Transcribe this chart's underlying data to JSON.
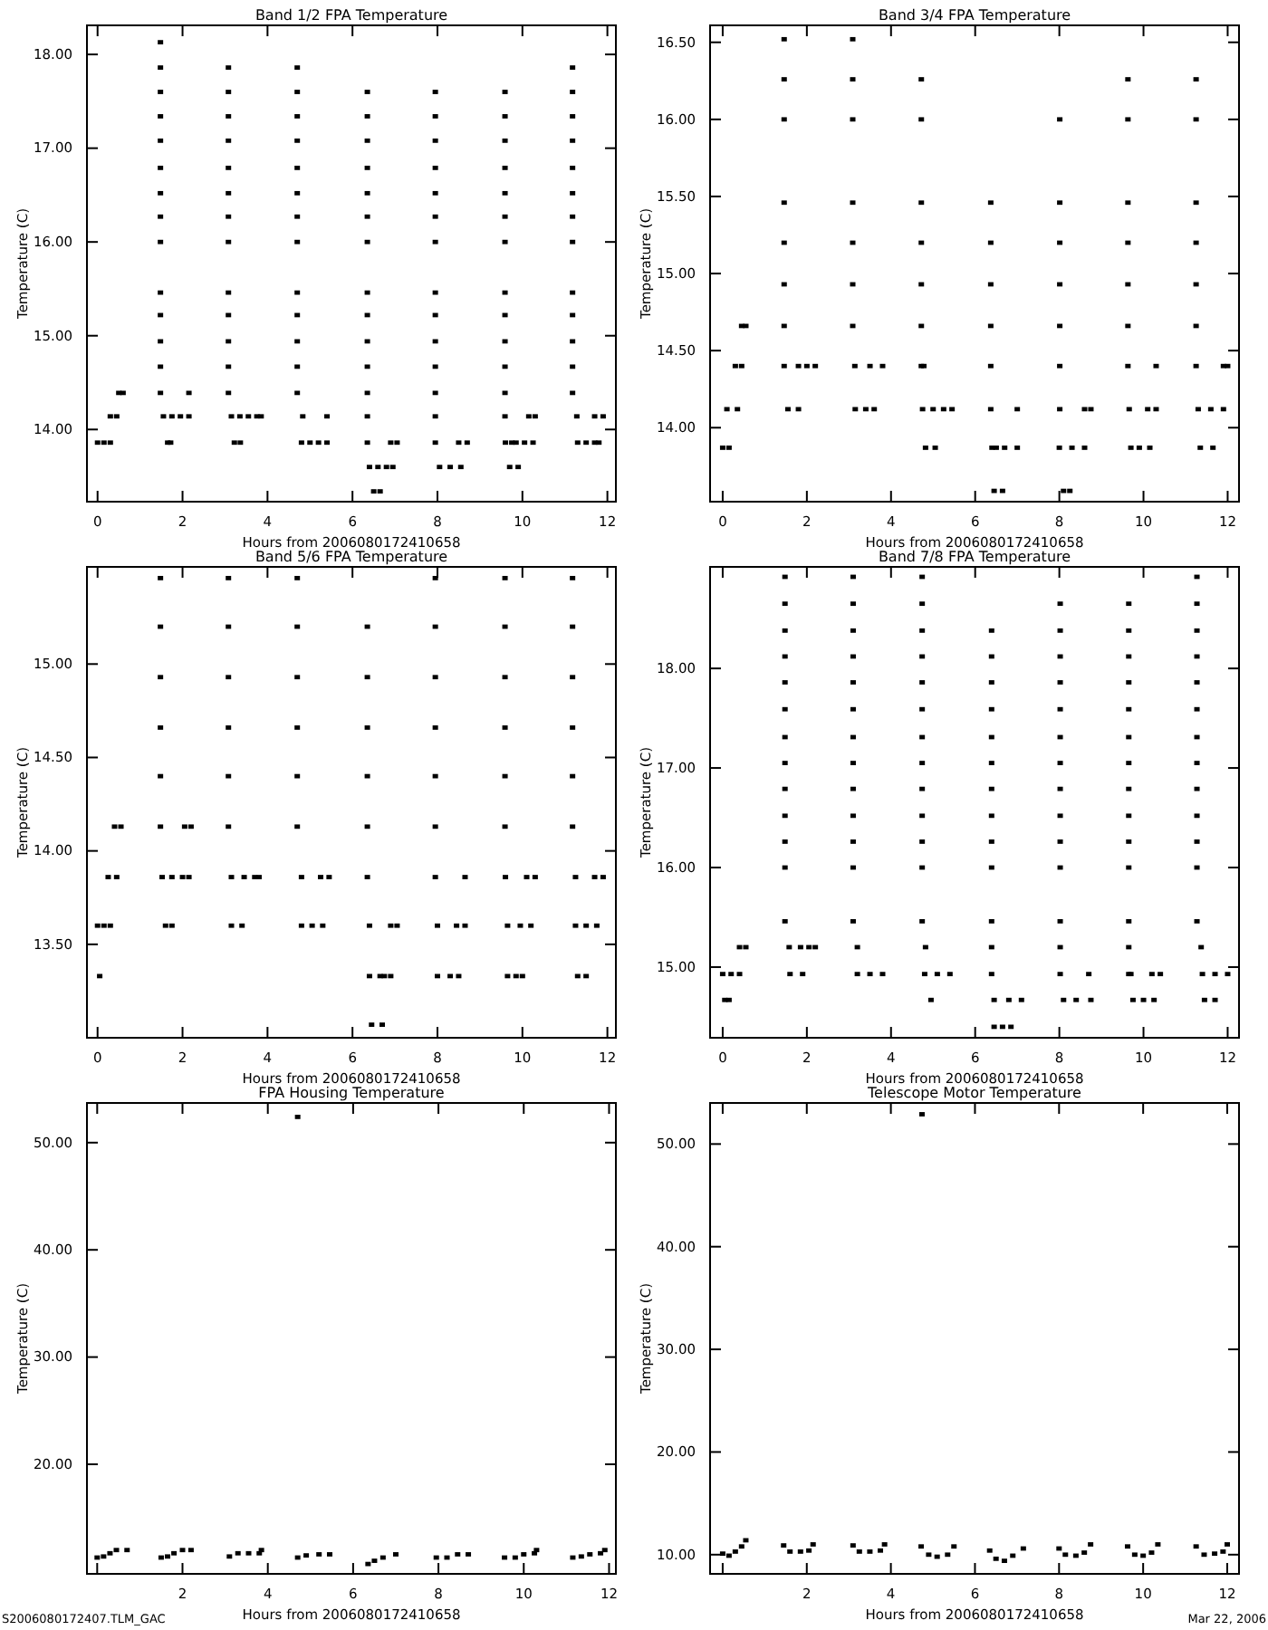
{
  "chart_data": [
    {
      "type": "scatter",
      "title": "Band 1/2 FPA Temperature",
      "xlabel": "Hours from 2006080172410658",
      "ylabel": "Temperature (C)",
      "color": "#000000",
      "marker": "square",
      "xlim": [
        -0.25,
        12.2
      ],
      "xticks": [
        0,
        2,
        4,
        6,
        8,
        10,
        12
      ],
      "ylim": [
        13.23,
        18.31
      ],
      "yticks": [
        {
          "value": 14,
          "label": "14.00"
        },
        {
          "value": 15,
          "label": "15.00"
        },
        {
          "value": 16,
          "label": "16.00"
        },
        {
          "value": 17,
          "label": "17.00"
        },
        {
          "value": 18,
          "label": "18.00"
        }
      ],
      "x": [
        1.48,
        1.48,
        1.48,
        1.48,
        1.48,
        1.48,
        1.48,
        1.48,
        1.48,
        1.48,
        1.48,
        1.48,
        1.48,
        1.48,
        3.08,
        3.08,
        3.08,
        3.08,
        3.08,
        3.08,
        3.08,
        3.08,
        3.08,
        3.08,
        3.08,
        3.08,
        3.08,
        4.7,
        4.7,
        4.7,
        4.7,
        4.7,
        4.7,
        4.7,
        4.7,
        4.7,
        4.7,
        4.7,
        4.7,
        4.7,
        6.35,
        6.35,
        6.35,
        6.35,
        6.35,
        6.35,
        6.35,
        6.35,
        6.35,
        6.35,
        6.35,
        6.35,
        6.35,
        6.35,
        7.95,
        7.95,
        7.95,
        7.95,
        7.95,
        7.95,
        7.95,
        7.95,
        7.95,
        7.95,
        7.95,
        7.95,
        7.95,
        7.95,
        9.59,
        9.59,
        9.59,
        9.59,
        9.59,
        9.59,
        9.59,
        9.59,
        9.59,
        9.59,
        9.59,
        9.59,
        9.59,
        11.18,
        11.18,
        11.18,
        11.18,
        11.18,
        11.18,
        11.18,
        11.18,
        11.18,
        11.18,
        11.18,
        11.18,
        11.18,
        0,
        0.15,
        0.3,
        0.3,
        0.45,
        0.5,
        0.6,
        1.55,
        1.75,
        1.95,
        2.15,
        1.65,
        1.72,
        2.15,
        3.15,
        3.35,
        3.55,
        3.75,
        3.85,
        3.22,
        3.36,
        4.83,
        4.8,
        5.0,
        5.2,
        5.4,
        5.4,
        6.4,
        6.6,
        6.8,
        6.95,
        6.5,
        6.65,
        6.9,
        7.05,
        8.05,
        8.3,
        8.55,
        8.5,
        8.7,
        9.6,
        9.75,
        9.85,
        10.05,
        10.25,
        9.7,
        9.9,
        10.15,
        10.3,
        11.28,
        11.3,
        11.5,
        11.7,
        11.8,
        11.7,
        11.9
      ],
      "values": [
        14.39,
        14.67,
        14.94,
        15.22,
        15.46,
        16.0,
        16.27,
        16.52,
        16.79,
        17.08,
        17.34,
        17.6,
        17.86,
        18.13,
        14.39,
        14.67,
        14.94,
        15.22,
        15.46,
        16.0,
        16.27,
        16.52,
        16.79,
        17.08,
        17.34,
        17.6,
        17.86,
        14.39,
        14.67,
        14.94,
        15.22,
        15.46,
        16.0,
        16.27,
        16.52,
        16.79,
        17.08,
        17.34,
        17.6,
        17.86,
        13.86,
        14.14,
        14.39,
        14.67,
        14.94,
        15.22,
        15.46,
        16.0,
        16.27,
        16.52,
        16.79,
        17.08,
        17.34,
        17.6,
        13.86,
        14.14,
        14.39,
        14.67,
        14.94,
        15.22,
        15.46,
        16.0,
        16.27,
        16.52,
        16.79,
        17.08,
        17.34,
        17.6,
        14.14,
        14.39,
        14.67,
        14.94,
        15.22,
        15.46,
        16.0,
        16.27,
        16.52,
        16.79,
        17.08,
        17.34,
        17.6,
        14.39,
        14.67,
        14.94,
        15.22,
        15.46,
        16.0,
        16.27,
        16.52,
        16.79,
        17.08,
        17.34,
        17.6,
        17.86,
        13.86,
        13.86,
        13.86,
        14.14,
        14.14,
        14.39,
        14.39,
        14.14,
        14.14,
        14.14,
        14.14,
        13.86,
        13.86,
        14.39,
        14.14,
        14.14,
        14.14,
        14.14,
        14.14,
        13.86,
        13.86,
        14.14,
        13.86,
        13.86,
        13.86,
        13.86,
        14.14,
        13.6,
        13.6,
        13.6,
        13.6,
        13.34,
        13.34,
        13.86,
        13.86,
        13.6,
        13.6,
        13.6,
        13.86,
        13.86,
        13.86,
        13.86,
        13.86,
        13.86,
        13.86,
        13.6,
        13.6,
        14.14,
        14.14,
        14.14,
        13.86,
        13.86,
        13.86,
        13.86,
        14.14,
        14.14
      ]
    },
    {
      "type": "scatter",
      "title": "Band 3/4 FPA Temperature",
      "xlabel": "Hours from 2006080172410658",
      "ylabel": "Temperature (C)",
      "color": "#000000",
      "marker": "square",
      "xlim": [
        -0.3,
        12.27
      ],
      "xticks": [
        0,
        2,
        4,
        6,
        8,
        10,
        12
      ],
      "ylim": [
        13.52,
        16.61
      ],
      "yticks": [
        {
          "value": 14,
          "label": "14.00"
        },
        {
          "value": 14.5,
          "label": "14.50"
        },
        {
          "value": 15,
          "label": "15.00"
        },
        {
          "value": 15.5,
          "label": "15.50"
        },
        {
          "value": 16,
          "label": "16.00"
        },
        {
          "value": 16.5,
          "label": "16.50"
        }
      ],
      "x": [
        1.46,
        1.46,
        1.46,
        1.46,
        1.46,
        1.46,
        1.46,
        1.46,
        3.09,
        3.09,
        3.09,
        3.09,
        3.09,
        3.09,
        3.09,
        4.72,
        4.72,
        4.72,
        4.72,
        4.72,
        4.72,
        4.72,
        6.37,
        6.37,
        6.37,
        6.37,
        6.37,
        6.37,
        8.01,
        8.01,
        8.01,
        8.01,
        8.01,
        8.01,
        8.01,
        9.63,
        9.63,
        9.63,
        9.63,
        9.63,
        9.63,
        9.63,
        11.25,
        11.25,
        11.25,
        11.25,
        11.25,
        11.25,
        11.25,
        0,
        0.15,
        4.82,
        5.05,
        6.4,
        6.5,
        6.7,
        7.0,
        8.0,
        8.3,
        8.6,
        9.7,
        9.9,
        10.15,
        11.35,
        11.65,
        0.1,
        0.35,
        1.55,
        1.8,
        3.15,
        3.4,
        3.6,
        4.75,
        5.0,
        5.25,
        5.45,
        7.0,
        8.6,
        8.75,
        9.66,
        10.1,
        10.3,
        11.3,
        11.6,
        11.9,
        0.3,
        0.45,
        1.8,
        2.0,
        2.2,
        3.14,
        3.5,
        3.8,
        4.78,
        10.3,
        11.9,
        12.0,
        0.45,
        0.55,
        6.45,
        6.65,
        8.1,
        8.25
      ],
      "values": [
        14.4,
        14.66,
        14.93,
        15.2,
        15.46,
        16.0,
        16.26,
        16.52,
        14.66,
        14.93,
        15.2,
        15.46,
        16.0,
        16.26,
        16.52,
        14.4,
        14.66,
        14.93,
        15.2,
        15.46,
        16.0,
        16.26,
        14.12,
        14.4,
        14.66,
        14.93,
        15.2,
        15.46,
        14.12,
        14.4,
        14.66,
        14.93,
        15.2,
        15.46,
        16.0,
        14.4,
        14.66,
        14.93,
        15.2,
        15.46,
        16.0,
        16.26,
        14.4,
        14.66,
        14.93,
        15.2,
        15.46,
        16.0,
        16.26,
        13.87,
        13.87,
        13.87,
        13.87,
        13.87,
        13.87,
        13.87,
        13.87,
        13.87,
        13.87,
        13.87,
        13.87,
        13.87,
        13.87,
        13.87,
        13.87,
        14.12,
        14.12,
        14.12,
        14.12,
        14.12,
        14.12,
        14.12,
        14.12,
        14.12,
        14.12,
        14.12,
        14.12,
        14.12,
        14.12,
        14.12,
        14.12,
        14.12,
        14.12,
        14.12,
        14.12,
        14.4,
        14.4,
        14.4,
        14.4,
        14.4,
        14.4,
        14.4,
        14.4,
        14.4,
        14.4,
        14.4,
        14.4,
        14.66,
        14.66,
        13.59,
        13.59,
        13.59,
        13.59
      ]
    },
    {
      "type": "scatter",
      "title": "Band 5/6 FPA Temperature",
      "xlabel": "Hours from 2006080172410658",
      "ylabel": "Temperature (C)",
      "color": "#000000",
      "marker": "square",
      "xlim": [
        -0.25,
        12.2
      ],
      "xticks": [
        0,
        2,
        4,
        6,
        8,
        10,
        12
      ],
      "ylim": [
        13.0,
        15.52
      ],
      "yticks": [
        {
          "value": 13.5,
          "label": "13.50"
        },
        {
          "value": 14,
          "label": "14.00"
        },
        {
          "value": 14.5,
          "label": "14.50"
        },
        {
          "value": 15,
          "label": "15.00"
        }
      ],
      "x": [
        1.48,
        1.48,
        1.48,
        1.48,
        1.48,
        1.48,
        3.08,
        3.08,
        3.08,
        3.08,
        3.08,
        3.08,
        4.7,
        4.7,
        4.7,
        4.7,
        4.7,
        4.7,
        6.35,
        6.35,
        6.35,
        6.35,
        6.35,
        6.35,
        7.95,
        7.95,
        7.95,
        7.95,
        7.95,
        7.95,
        9.59,
        9.59,
        9.59,
        9.59,
        9.59,
        9.59,
        11.18,
        11.18,
        11.18,
        11.18,
        11.18,
        11.18,
        0.05,
        6.4,
        6.65,
        6.75,
        6.9,
        8.0,
        8.3,
        8.5,
        9.65,
        9.85,
        10.0,
        11.3,
        11.5,
        0,
        0.15,
        0.3,
        1.6,
        1.75,
        3.15,
        3.4,
        4.8,
        5.05,
        5.3,
        6.4,
        6.9,
        7.05,
        8.0,
        8.45,
        8.65,
        9.65,
        9.95,
        10.2,
        11.25,
        11.5,
        11.75,
        0.25,
        0.45,
        1.52,
        1.75,
        2.0,
        2.15,
        3.15,
        3.45,
        3.7,
        3.8,
        4.8,
        5.25,
        5.45,
        7.95,
        8.65,
        9.6,
        10.1,
        10.3,
        11.25,
        11.7,
        11.9,
        0.4,
        0.55,
        2.05,
        2.2,
        6.45,
        6.7
      ],
      "values": [
        14.13,
        14.4,
        14.66,
        14.93,
        15.2,
        15.46,
        14.13,
        14.4,
        14.66,
        14.93,
        15.2,
        15.46,
        14.13,
        14.4,
        14.66,
        14.93,
        15.2,
        15.46,
        13.86,
        14.13,
        14.4,
        14.66,
        14.93,
        15.2,
        14.13,
        14.4,
        14.66,
        14.93,
        15.2,
        15.46,
        14.13,
        14.4,
        14.66,
        14.93,
        15.2,
        15.46,
        14.13,
        14.4,
        14.66,
        14.93,
        15.2,
        15.46,
        13.33,
        13.33,
        13.33,
        13.33,
        13.33,
        13.33,
        13.33,
        13.33,
        13.33,
        13.33,
        13.33,
        13.33,
        13.33,
        13.6,
        13.6,
        13.6,
        13.6,
        13.6,
        13.6,
        13.6,
        13.6,
        13.6,
        13.6,
        13.6,
        13.6,
        13.6,
        13.6,
        13.6,
        13.6,
        13.6,
        13.6,
        13.6,
        13.6,
        13.6,
        13.6,
        13.86,
        13.86,
        13.86,
        13.86,
        13.86,
        13.86,
        13.86,
        13.86,
        13.86,
        13.86,
        13.86,
        13.86,
        13.86,
        13.86,
        13.86,
        13.86,
        13.86,
        13.86,
        13.86,
        13.86,
        13.86,
        14.13,
        14.13,
        14.13,
        14.13,
        13.07,
        13.07
      ]
    },
    {
      "type": "scatter",
      "title": "Band 7/8 FPA Temperature",
      "xlabel": "Hours from 2006080172410658",
      "ylabel": "Temperature (C)",
      "color": "#000000",
      "marker": "square",
      "xlim": [
        -0.3,
        12.27
      ],
      "xticks": [
        0,
        2,
        4,
        6,
        8,
        10,
        12
      ],
      "ylim": [
        14.29,
        19.02
      ],
      "yticks": [
        {
          "value": 15,
          "label": "15.00"
        },
        {
          "value": 16,
          "label": "16.00"
        },
        {
          "value": 17,
          "label": "17.00"
        },
        {
          "value": 18,
          "label": "18.00"
        }
      ],
      "x": [
        1.48,
        1.48,
        1.48,
        1.48,
        1.48,
        1.48,
        1.48,
        1.48,
        1.48,
        1.48,
        1.48,
        1.48,
        1.48,
        3.1,
        3.1,
        3.1,
        3.1,
        3.1,
        3.1,
        3.1,
        3.1,
        3.1,
        3.1,
        3.1,
        3.1,
        3.1,
        4.74,
        4.74,
        4.74,
        4.74,
        4.74,
        4.74,
        4.74,
        4.74,
        4.74,
        4.74,
        4.74,
        4.74,
        4.74,
        6.39,
        6.39,
        6.39,
        6.39,
        6.39,
        6.39,
        6.39,
        6.39,
        6.39,
        6.39,
        6.39,
        6.39,
        6.39,
        8.02,
        8.02,
        8.02,
        8.02,
        8.02,
        8.02,
        8.02,
        8.02,
        8.02,
        8.02,
        8.02,
        8.02,
        8.02,
        8.02,
        9.65,
        9.65,
        9.65,
        9.65,
        9.65,
        9.65,
        9.65,
        9.65,
        9.65,
        9.65,
        9.65,
        9.65,
        9.65,
        9.65,
        11.27,
        11.27,
        11.27,
        11.27,
        11.27,
        11.27,
        11.27,
        11.27,
        11.27,
        11.27,
        11.27,
        11.27,
        11.27,
        0.4,
        0.55,
        1.58,
        1.85,
        2.05,
        2.2,
        3.2,
        4.82,
        11.37,
        0,
        0.2,
        0.4,
        1.6,
        1.9,
        3.2,
        3.5,
        3.8,
        4.8,
        5.1,
        5.4,
        8.7,
        9.7,
        10.2,
        10.4,
        11.4,
        11.7,
        12.0,
        0.05,
        0.15,
        4.95,
        6.45,
        6.8,
        7.1,
        8.1,
        8.4,
        8.75,
        9.75,
        10.0,
        10.25,
        11.45,
        11.7,
        6.45,
        6.65,
        6.85
      ],
      "values": [
        15.46,
        16.0,
        16.26,
        16.52,
        16.79,
        17.05,
        17.31,
        17.59,
        17.86,
        18.12,
        18.38,
        18.65,
        18.92,
        15.46,
        16.0,
        16.26,
        16.52,
        16.79,
        17.05,
        17.31,
        17.59,
        17.86,
        18.12,
        18.38,
        18.65,
        18.92,
        15.46,
        16.0,
        16.26,
        16.52,
        16.79,
        17.05,
        17.31,
        17.59,
        17.86,
        18.12,
        18.38,
        18.65,
        18.92,
        14.93,
        15.2,
        15.46,
        16.0,
        16.26,
        16.52,
        16.79,
        17.05,
        17.31,
        17.59,
        17.86,
        18.12,
        18.38,
        14.93,
        15.2,
        15.46,
        16.0,
        16.26,
        16.52,
        16.79,
        17.05,
        17.31,
        17.59,
        17.86,
        18.12,
        18.38,
        18.65,
        14.93,
        15.2,
        15.46,
        16.0,
        16.26,
        16.52,
        16.79,
        17.05,
        17.31,
        17.59,
        17.86,
        18.12,
        18.38,
        18.65,
        15.46,
        16.0,
        16.26,
        16.52,
        16.79,
        17.05,
        17.31,
        17.59,
        17.86,
        18.12,
        18.38,
        18.65,
        18.92,
        15.2,
        15.2,
        15.2,
        15.2,
        15.2,
        15.2,
        15.2,
        15.2,
        15.2,
        14.93,
        14.93,
        14.93,
        14.93,
        14.93,
        14.93,
        14.93,
        14.93,
        14.93,
        14.93,
        14.93,
        14.93,
        14.93,
        14.93,
        14.93,
        14.93,
        14.93,
        14.93,
        14.67,
        14.67,
        14.67,
        14.67,
        14.67,
        14.67,
        14.67,
        14.67,
        14.67,
        14.67,
        14.67,
        14.67,
        14.67,
        14.67,
        14.4,
        14.4,
        14.4
      ]
    },
    {
      "type": "scatter",
      "title": "FPA Housing Temperature",
      "xlabel": "Hours from 2006080172410658",
      "ylabel": "Temperature (C)",
      "color": "#000000",
      "marker": "square",
      "annotations": [
        "S2006080172407.TLM_GAC"
      ],
      "xlim": [
        -0.24,
        12.16
      ],
      "xticks": [
        {
          "value": 0,
          "label": null
        },
        2,
        4,
        6,
        8,
        10,
        12
      ],
      "ylim": [
        9.78,
        53.7
      ],
      "yticks": [
        {
          "value": 20,
          "label": "20.00"
        },
        {
          "value": 30,
          "label": "30.00"
        },
        {
          "value": 40,
          "label": "40.00"
        },
        {
          "value": 50,
          "label": "50.00"
        }
      ],
      "x": [
        0,
        0.15,
        0.3,
        0.45,
        0.7,
        1.5,
        1.65,
        1.8,
        2.0,
        2.2,
        3.1,
        3.3,
        3.55,
        3.8,
        3.85,
        4.7,
        4.9,
        5.2,
        5.45,
        6.35,
        6.5,
        6.7,
        7.0,
        7.95,
        8.2,
        8.45,
        8.7,
        9.55,
        9.8,
        10.0,
        10.25,
        10.3,
        11.15,
        11.35,
        11.55,
        11.8,
        11.9,
        4.7
      ],
      "values": [
        11.3,
        11.4,
        11.7,
        12.0,
        12.0,
        11.3,
        11.4,
        11.7,
        12.0,
        12.0,
        11.4,
        11.7,
        11.7,
        11.7,
        12.0,
        11.3,
        11.5,
        11.6,
        11.6,
        10.7,
        11.0,
        11.3,
        11.6,
        11.3,
        11.3,
        11.6,
        11.6,
        11.3,
        11.3,
        11.6,
        11.7,
        12.0,
        11.3,
        11.4,
        11.6,
        11.7,
        12.0,
        52.4
      ]
    },
    {
      "type": "scatter",
      "title": "Telescope Motor Temperature",
      "xlabel": "Hours from 2006080172410658",
      "ylabel": "Temperature (C)",
      "color": "#000000",
      "marker": "square",
      "annotations": [
        "Mar 22, 2006"
      ],
      "xlim": [
        -0.3,
        12.28
      ],
      "xticks": [
        {
          "value": 0,
          "label": null
        },
        2,
        4,
        6,
        8,
        10,
        12
      ],
      "ylim": [
        8.13,
        54.0
      ],
      "yticks": [
        {
          "value": 10,
          "label": "10.00"
        },
        {
          "value": 20,
          "label": "20.00"
        },
        {
          "value": 30,
          "label": "30.00"
        },
        {
          "value": 40,
          "label": "40.00"
        },
        {
          "value": 50,
          "label": "50.00"
        }
      ],
      "x": [
        0,
        0.15,
        0.3,
        0.45,
        0.55,
        1.45,
        1.6,
        1.85,
        2.05,
        2.15,
        3.1,
        3.25,
        3.5,
        3.75,
        3.85,
        4.72,
        4.9,
        5.1,
        5.35,
        5.5,
        6.35,
        6.5,
        6.7,
        6.9,
        7.15,
        8.0,
        8.15,
        8.4,
        8.6,
        8.75,
        9.63,
        9.8,
        10.0,
        10.2,
        10.35,
        11.26,
        11.45,
        11.7,
        11.9,
        12.0,
        4.74
      ],
      "values": [
        10.1,
        9.9,
        10.3,
        10.8,
        11.4,
        10.9,
        10.3,
        10.3,
        10.4,
        11.0,
        10.9,
        10.3,
        10.3,
        10.4,
        11.0,
        10.8,
        10.0,
        9.8,
        10.0,
        10.8,
        10.4,
        9.6,
        9.4,
        9.9,
        10.6,
        10.6,
        10.0,
        9.9,
        10.2,
        11.0,
        10.8,
        10.0,
        9.9,
        10.2,
        11.0,
        10.8,
        10.0,
        10.1,
        10.3,
        11.0,
        52.9
      ]
    }
  ]
}
